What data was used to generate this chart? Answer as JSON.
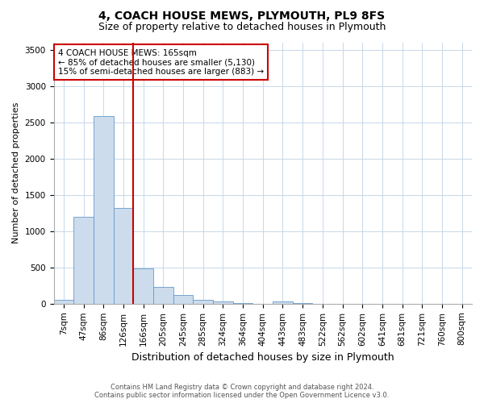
{
  "title": "4, COACH HOUSE MEWS, PLYMOUTH, PL9 8FS",
  "subtitle": "Size of property relative to detached houses in Plymouth",
  "xlabel": "Distribution of detached houses by size in Plymouth",
  "ylabel": "Number of detached properties",
  "bar_color": "#ccdcec",
  "bar_edge_color": "#6699cc",
  "bins": [
    "7sqm",
    "47sqm",
    "86sqm",
    "126sqm",
    "166sqm",
    "205sqm",
    "245sqm",
    "285sqm",
    "324sqm",
    "364sqm",
    "404sqm",
    "443sqm",
    "483sqm",
    "522sqm",
    "562sqm",
    "602sqm",
    "641sqm",
    "681sqm",
    "721sqm",
    "760sqm",
    "800sqm"
  ],
  "values": [
    50,
    1200,
    2580,
    1320,
    490,
    230,
    120,
    50,
    30,
    10,
    0,
    30,
    10,
    0,
    0,
    0,
    0,
    0,
    0,
    0,
    0
  ],
  "vline_color": "#cc0000",
  "ylim": [
    0,
    3600
  ],
  "yticks": [
    0,
    500,
    1000,
    1500,
    2000,
    2500,
    3000,
    3500
  ],
  "annotation_text": "4 COACH HOUSE MEWS: 165sqm\n← 85% of detached houses are smaller (5,130)\n15% of semi-detached houses are larger (883) →",
  "annotation_box_color": "#cc0000",
  "footer_line1": "Contains HM Land Registry data © Crown copyright and database right 2024.",
  "footer_line2": "Contains public sector information licensed under the Open Government Licence v3.0.",
  "bg_color": "#ffffff",
  "grid_color": "#c8d8e8",
  "title_fontsize": 10,
  "subtitle_fontsize": 9,
  "ylabel_fontsize": 8,
  "xlabel_fontsize": 9,
  "tick_fontsize": 7.5,
  "annotation_fontsize": 7.5,
  "footer_fontsize": 6
}
